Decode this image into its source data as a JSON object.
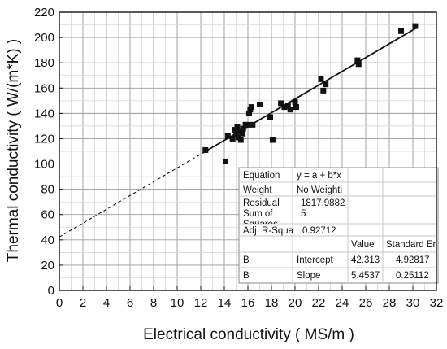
{
  "chart_data": {
    "type": "scatter",
    "xlabel": "Electrical conductivity ( MS/m )",
    "ylabel": "Thermal conductivity ( W/(m*K) )",
    "xlim": [
      0,
      32
    ],
    "ylim": [
      0,
      220
    ],
    "x_ticks": [
      "0",
      "2",
      "4",
      "6",
      "8",
      "10",
      "12",
      "14",
      "16",
      "18",
      "20",
      "22",
      "24",
      "26",
      "28",
      "30",
      "32"
    ],
    "y_ticks": [
      "0",
      "20",
      "40",
      "60",
      "80",
      "100",
      "120",
      "140",
      "160",
      "180",
      "200",
      "220"
    ],
    "grid": true,
    "points": [
      {
        "x": 12.4,
        "y": 111
      },
      {
        "x": 14.1,
        "y": 102
      },
      {
        "x": 14.3,
        "y": 122
      },
      {
        "x": 14.7,
        "y": 120
      },
      {
        "x": 14.9,
        "y": 127
      },
      {
        "x": 15.0,
        "y": 123
      },
      {
        "x": 15.1,
        "y": 129
      },
      {
        "x": 15.2,
        "y": 121
      },
      {
        "x": 15.3,
        "y": 126
      },
      {
        "x": 15.4,
        "y": 119
      },
      {
        "x": 15.5,
        "y": 124
      },
      {
        "x": 15.6,
        "y": 128
      },
      {
        "x": 15.8,
        "y": 131
      },
      {
        "x": 16.0,
        "y": 131
      },
      {
        "x": 16.1,
        "y": 140
      },
      {
        "x": 16.2,
        "y": 143
      },
      {
        "x": 16.3,
        "y": 145
      },
      {
        "x": 16.4,
        "y": 131
      },
      {
        "x": 17.0,
        "y": 147
      },
      {
        "x": 17.9,
        "y": 137
      },
      {
        "x": 18.1,
        "y": 119
      },
      {
        "x": 18.8,
        "y": 148
      },
      {
        "x": 19.1,
        "y": 145
      },
      {
        "x": 19.4,
        "y": 146
      },
      {
        "x": 19.6,
        "y": 143
      },
      {
        "x": 20.0,
        "y": 149
      },
      {
        "x": 20.1,
        "y": 145
      },
      {
        "x": 22.2,
        "y": 167
      },
      {
        "x": 22.4,
        "y": 158
      },
      {
        "x": 22.6,
        "y": 163
      },
      {
        "x": 25.3,
        "y": 182
      },
      {
        "x": 25.4,
        "y": 179
      },
      {
        "x": 29.0,
        "y": 205
      },
      {
        "x": 30.2,
        "y": 209
      }
    ],
    "fit": {
      "intercept": 42.313,
      "slope": 5.4537,
      "x_solid": [
        12.2,
        30.3
      ],
      "x_dashed": [
        0,
        12.2
      ]
    },
    "table": {
      "rows": [
        [
          "Equation",
          "y = a + b*x",
          ""
        ],
        [
          "Weight",
          "No Weighti",
          ""
        ],
        [
          "Residual Sum of Squares",
          "1817.9882 5",
          ""
        ],
        [
          "Adj. R-Squa",
          "0.92712",
          ""
        ],
        [
          "",
          "Value",
          "Standard Er"
        ],
        [
          "B",
          "Intercept",
          "42.313",
          "4.92817"
        ],
        [
          "B",
          "Slope",
          "5.4537",
          "0.25112"
        ]
      ],
      "equation_label": "Equation",
      "equation_value": "y = a + b*x",
      "weight_label": "Weight",
      "weight_value": "No Weighti",
      "residual_label_1": "Residual",
      "residual_label_2": "Sum of",
      "residual_label_3": "Squares",
      "residual_value_1": "1817.9882",
      "residual_value_2": "5",
      "adjr_label": "Adj. R-Squa",
      "adjr_value": "0.92712",
      "header_value": "Value",
      "header_stderr": "Standard Er",
      "intercept_b": "B",
      "intercept_name": "Intercept",
      "intercept_value": "42.313",
      "intercept_err": "4.92817",
      "slope_b": "B",
      "slope_name": "Slope",
      "slope_value": "5.4537",
      "slope_err": "0.25112"
    }
  }
}
